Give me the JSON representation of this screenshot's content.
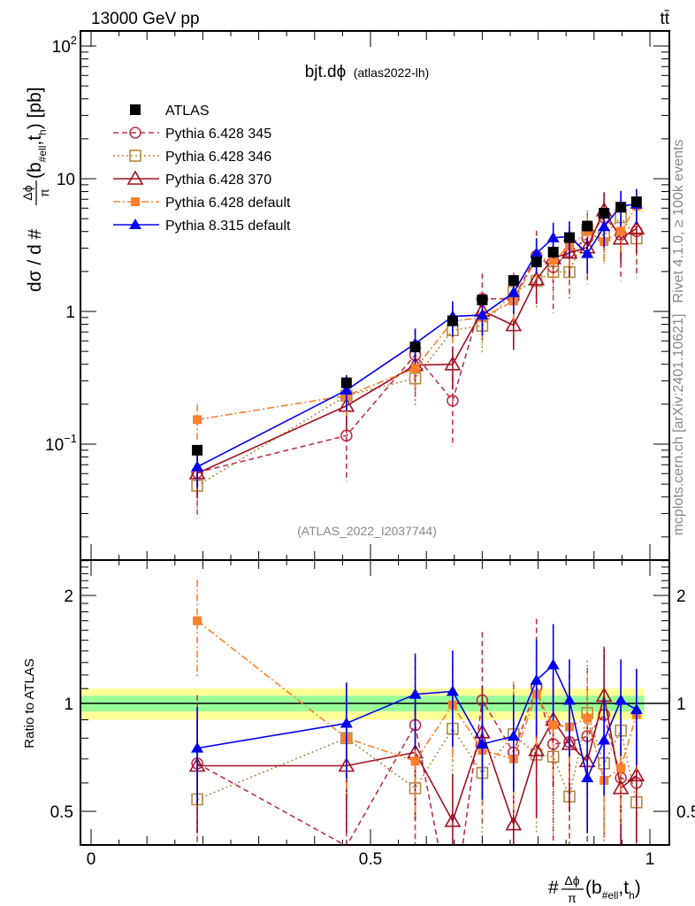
{
  "header": {
    "left": "13000 GeV pp",
    "right": "tt̄"
  },
  "side_text": {
    "top": "Rivet 4.1.0, ≥ 100k events",
    "bottom": "mcplots.cern.ch [arXiv:2401.10621]"
  },
  "chart_data": {
    "type": "line",
    "title": "bjt.dϕ",
    "title_suffix": "(atlas2022-lh)",
    "analysis_id": "(ATLAS_2022_I2037744)",
    "ylabel_parts": {
      "pre": "dσ / d #",
      "num": "Δϕ",
      "den": "π",
      "open": "(b",
      "sub1": "#ell",
      "mid": ",t",
      "sub2": "h",
      "post": ") [pb]"
    },
    "xlabel_parts": {
      "pre": "#",
      "num": "Δϕ",
      "den": "π",
      "open": "(b",
      "sub1": "#ell",
      "mid": ",t",
      "sub2": "h",
      "post": ")"
    },
    "ratio_ylabel": "Ratio to ATLAS",
    "xlim": [
      -0.02,
      1.035
    ],
    "ylim": [
      0.0134,
      126
    ],
    "yscale": "log",
    "ratio_ylim": [
      0.4,
      2.5
    ],
    "x_ticks": [
      {
        "v": 0,
        "label": "0"
      },
      {
        "v": 0.5,
        "label": "0.5"
      },
      {
        "v": 1,
        "label": "1"
      }
    ],
    "y_ticks": [
      {
        "v": 0.1,
        "base": "10",
        "exp": "−1"
      },
      {
        "v": 1,
        "base": "1",
        "exp": ""
      },
      {
        "v": 10,
        "base": "10",
        "exp": ""
      },
      {
        "v": 100,
        "base": "10",
        "exp": "2"
      }
    ],
    "ratio_ticks": [
      {
        "v": 0.5,
        "label": "0.5"
      },
      {
        "v": 1,
        "label": "1"
      },
      {
        "v": 2,
        "label": "2"
      }
    ],
    "ratio_band": {
      "inner": 0.05,
      "outer": 0.1,
      "x_range": [
        -0.02,
        0.99
      ]
    },
    "x": [
      0.19,
      0.457,
      0.58,
      0.647,
      0.7,
      0.756,
      0.797,
      0.827,
      0.856,
      0.888,
      0.918,
      0.948,
      0.976
    ],
    "data": {
      "name": "ATLAS",
      "values": [
        0.09,
        0.29,
        0.54,
        0.85,
        1.22,
        1.71,
        2.36,
        2.8,
        3.6,
        4.4,
        5.5,
        6.1,
        6.7
      ],
      "rel_err": 0.06,
      "color": "#000000"
    },
    "series": [
      {
        "name": "Pythia 6.428 345",
        "color": "#c0304a",
        "dash": "6,4",
        "marker": "open-circle",
        "rel_err": 0.55,
        "ratio": [
          0.68,
          0.4,
          0.87,
          0.25,
          1.02,
          0.73,
          1.11,
          0.77,
          0.78,
          0.81,
          0.93,
          0.62,
          0.6
        ]
      },
      {
        "name": "Pythia 6.428 346",
        "color": "#b08a40",
        "dash": "2,3",
        "marker": "open-square",
        "rel_err": 0.4,
        "ratio": [
          0.54,
          0.8,
          0.58,
          0.85,
          0.64,
          0.82,
          0.72,
          0.71,
          0.55,
          0.94,
          0.68,
          0.84,
          0.53
        ]
      },
      {
        "name": "Pythia 6.428 370",
        "color": "#a01020",
        "dash": "",
        "marker": "open-triangle",
        "rel_err": 0.35,
        "ratio": [
          0.67,
          0.67,
          0.73,
          0.47,
          0.83,
          0.46,
          0.74,
          0.9,
          0.77,
          0.69,
          1.05,
          0.58,
          0.63
        ]
      },
      {
        "name": "Pythia 6.428 default",
        "color": "#ff7f2a",
        "dash": "8,3,2,3",
        "marker": "filled-square",
        "rel_err": 0.3,
        "ratio": [
          1.7,
          0.8,
          0.69,
          0.99,
          0.74,
          0.7,
          1.06,
          0.87,
          0.86,
          0.91,
          0.61,
          0.66,
          0.93
        ]
      },
      {
        "name": "Pythia 8.315 default",
        "color": "#0000ee",
        "dash": "",
        "marker": "filled-triangle",
        "rel_err": 0.3,
        "ratio": [
          0.75,
          0.88,
          1.06,
          1.08,
          0.77,
          0.81,
          1.16,
          1.28,
          1.02,
          0.62,
          0.79,
          1.02,
          0.96
        ]
      }
    ]
  }
}
